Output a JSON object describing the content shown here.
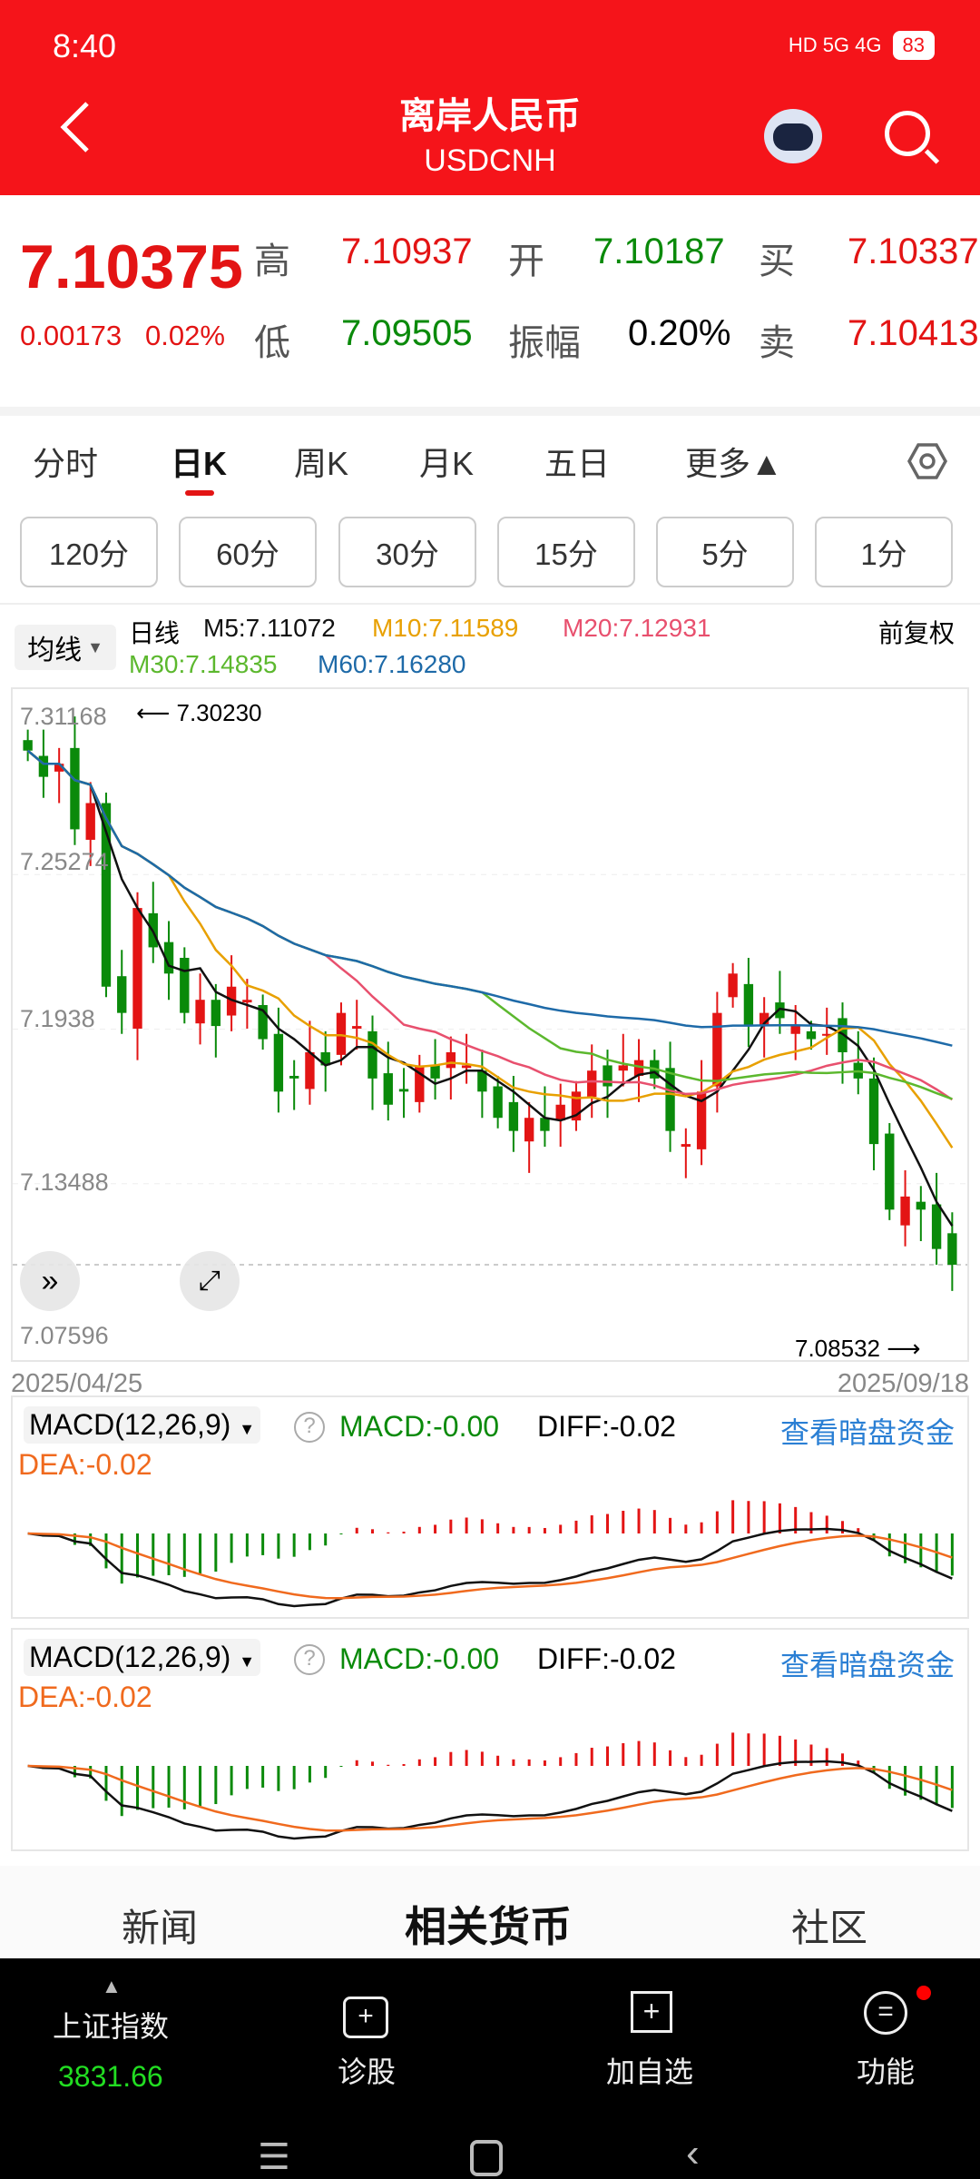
{
  "status": {
    "time": "8:40",
    "net": "HD 5G 4G",
    "battery": "83"
  },
  "header": {
    "title": "离岸人民币",
    "code": "USDCNH"
  },
  "quote": {
    "price": "7.10375",
    "change": "0.00173",
    "change_pct": "0.02%",
    "high_label": "高",
    "high": "7.10937",
    "open_label": "开",
    "open": "7.10187",
    "buy_label": "买",
    "buy": "7.10337",
    "low_label": "低",
    "low": "7.09505",
    "amp_label": "振幅",
    "amp": "0.20%",
    "sell_label": "卖",
    "sell": "7.10413"
  },
  "tabs": [
    "分时",
    "日K",
    "周K",
    "月K",
    "五日",
    "更多▲"
  ],
  "periods": [
    "120分",
    "60分",
    "30分",
    "15分",
    "5分",
    "1分"
  ],
  "ma": {
    "selector": "均线",
    "kind": "日线",
    "m5": "M5:7.11072",
    "m10": "M10:7.11589",
    "m20": "M20:7.12931",
    "m30": "M30:7.14835",
    "m60": "M60:7.16280",
    "adjust": "前复权"
  },
  "colors": {
    "up": "#e31414",
    "down": "#0a8a0a",
    "m5": "#111111",
    "m10": "#e8a000",
    "m20": "#e8506e",
    "m30": "#5cb82e",
    "m60": "#1e6aa8",
    "dea": "#f06a1e"
  },
  "chart_data": {
    "type": "candlestick",
    "yticks": [
      "7.31168",
      "7.25274",
      "7.1938",
      "7.13488",
      "7.07596"
    ],
    "ylim": [
      7.07596,
      7.31168
    ],
    "max_label": "7.30230",
    "min_label": "7.08532",
    "start_date": "2025/04/25",
    "end_date": "2025/09/18",
    "closes": [
      7.3,
      7.29,
      7.295,
      7.27,
      7.28,
      7.21,
      7.2,
      7.24,
      7.225,
      7.215,
      7.2,
      7.205,
      7.195,
      7.21,
      7.205,
      7.19,
      7.17,
      7.175,
      7.185,
      7.18,
      7.2,
      7.195,
      7.175,
      7.165,
      7.17,
      7.18,
      7.175,
      7.185,
      7.18,
      7.17,
      7.16,
      7.155,
      7.16,
      7.155,
      7.165,
      7.17,
      7.178,
      7.172,
      7.18,
      7.182,
      7.175,
      7.155,
      7.15,
      7.17,
      7.2,
      7.215,
      7.195,
      7.2,
      7.198,
      7.195,
      7.19,
      7.192,
      7.185,
      7.175,
      7.15,
      7.125,
      7.13,
      7.125,
      7.11,
      7.104
    ]
  },
  "macd": {
    "name": "MACD(12,26,9)",
    "macd": "MACD:-0.00",
    "diff": "DIFF:-0.02",
    "dea": "DEA:-0.02",
    "link": "查看暗盘资金"
  },
  "bottom_tabs": [
    "新闻",
    "相关货币",
    "社区"
  ],
  "bar": {
    "index_name": "上证指数",
    "index_value": "3831.66",
    "diag": "诊股",
    "add": "加自选",
    "func": "功能"
  }
}
